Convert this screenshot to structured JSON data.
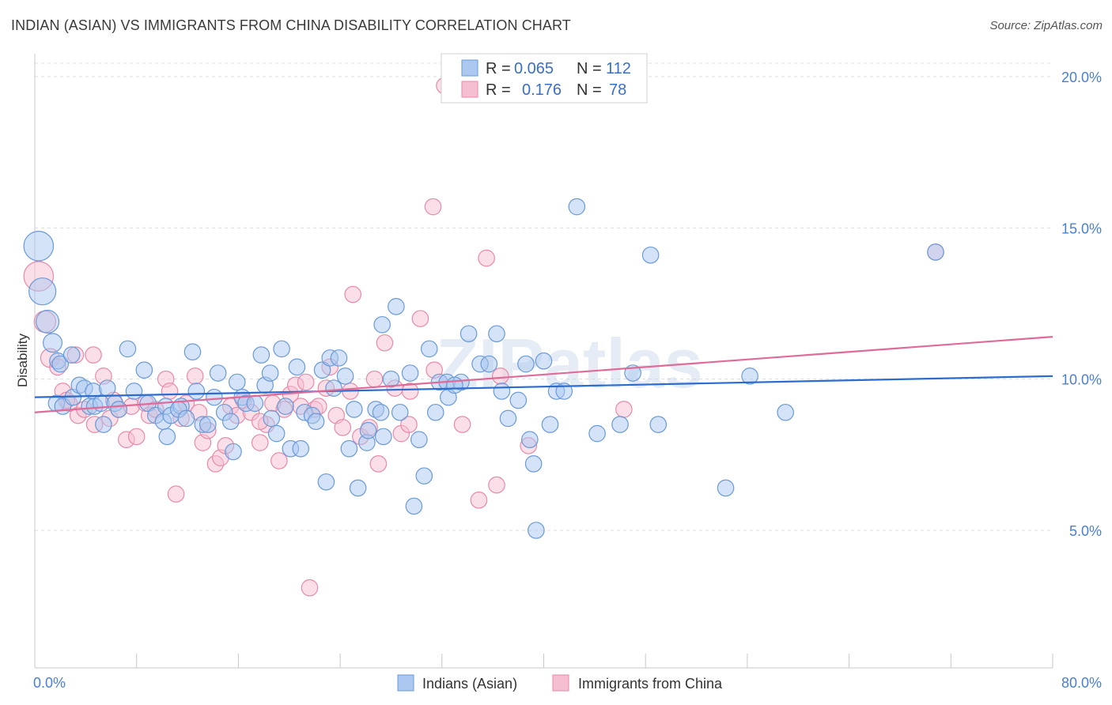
{
  "title": "INDIAN (ASIAN) VS IMMIGRANTS FROM CHINA DISABILITY CORRELATION CHART",
  "source": "Source: ZipAtlas.com",
  "watermark": "ZIPatlas",
  "colors": {
    "blue_fill": "#aac8f0",
    "blue_stroke": "#6a9ad8",
    "blue_line": "#2b6cd0",
    "pink_fill": "#f6bfd1",
    "pink_stroke": "#e88aa8",
    "pink_line": "#e06a98",
    "grid": "#dcdcdc",
    "tick_text": "#4a7fd0"
  },
  "legend_box": {
    "rows": [
      {
        "r_label": "R =",
        "r_value": "0.065",
        "n_label": "N =",
        "n_value": "112",
        "color": "blue"
      },
      {
        "r_label": "R =",
        "r_value": "0.176",
        "n_label": "N =",
        "n_value": "78",
        "color": "pink"
      }
    ]
  },
  "chart_data": {
    "type": "scatter",
    "title": "INDIAN (ASIAN) VS IMMIGRANTS FROM CHINA DISABILITY CORRELATION CHART",
    "xlabel": "",
    "ylabel": "Disability",
    "xlim": [
      0,
      80
    ],
    "ylim": [
      0,
      21
    ],
    "x_tick_labels": [
      "0.0%",
      "80.0%"
    ],
    "y_ticks": [
      5,
      10,
      15,
      20
    ],
    "y_tick_labels": [
      "5.0%",
      "10.0%",
      "15.0%",
      "20.0%"
    ],
    "grid": "horizontal dashed",
    "legend_position": "bottom-center",
    "series": [
      {
        "name": "Indians (Asian)",
        "color": "blue",
        "trend": {
          "x": [
            0,
            80
          ],
          "y": [
            9.4,
            10.1
          ]
        },
        "points": [
          [
            0.3,
            14.4,
            2.2
          ],
          [
            0.6,
            12.9,
            2
          ],
          [
            1,
            11.9,
            1.7
          ],
          [
            1.4,
            11.2,
            1.4
          ],
          [
            1.8,
            10.6,
            1.2
          ],
          [
            2,
            10.5,
            1.2
          ],
          [
            2.9,
            10.8,
            1.2
          ],
          [
            1.7,
            9.2,
            1.2
          ],
          [
            2.2,
            9.1,
            1.2
          ],
          [
            3,
            9.4,
            1.2
          ],
          [
            3.5,
            9.8,
            1.2
          ],
          [
            3.9,
            9.7,
            1.2
          ],
          [
            4.6,
            9.6,
            1.2
          ],
          [
            4.3,
            9.1,
            1.2
          ],
          [
            4.7,
            9.1,
            1.2
          ],
          [
            5.7,
            9.7,
            1.2
          ],
          [
            5.2,
            9.2,
            1.2
          ],
          [
            5.4,
            8.5,
            1.2
          ],
          [
            6.3,
            9.2,
            1.2
          ],
          [
            6.6,
            9.0,
            1.2
          ],
          [
            7.3,
            11,
            1.2
          ],
          [
            7.8,
            9.6,
            1.2
          ],
          [
            8.6,
            10.3,
            1.2
          ],
          [
            8.9,
            9.2,
            1.2
          ],
          [
            9.5,
            8.8,
            1.2
          ],
          [
            10.1,
            8.6,
            1.2
          ],
          [
            10.3,
            9.1,
            1.2
          ],
          [
            10.4,
            8.1,
            1.2
          ],
          [
            10.7,
            8.8,
            1.2
          ],
          [
            11.5,
            9.1,
            1.2
          ],
          [
            11.3,
            9.0,
            1.2
          ],
          [
            11.9,
            8.7,
            1.2
          ],
          [
            12.4,
            10.9,
            1.2
          ],
          [
            12.7,
            9.6,
            1.2
          ],
          [
            13.2,
            8.5,
            1.2
          ],
          [
            13.6,
            8.5,
            1.2
          ],
          [
            14.1,
            9.4,
            1.2
          ],
          [
            14.4,
            10.2,
            1.2
          ],
          [
            14.9,
            8.9,
            1.2
          ],
          [
            15.4,
            8.6,
            1.2
          ],
          [
            15.6,
            7.6,
            1.2
          ],
          [
            15.9,
            9.9,
            1.2
          ],
          [
            16.3,
            9.4,
            1.2
          ],
          [
            16.6,
            9.2,
            1.2
          ],
          [
            17.3,
            9.2,
            1.2
          ],
          [
            17.8,
            10.8,
            1.2
          ],
          [
            18.1,
            9.8,
            1.2
          ],
          [
            18.6,
            8.7,
            1.2
          ],
          [
            19,
            8.2,
            1.2
          ],
          [
            19.4,
            11,
            1.2
          ],
          [
            19.7,
            9.1,
            1.2
          ],
          [
            20.1,
            7.7,
            1.2
          ],
          [
            20.6,
            10.4,
            1.2
          ],
          [
            20.9,
            7.7,
            1.2
          ],
          [
            21.2,
            8.9,
            1.2
          ],
          [
            21.8,
            8.8,
            1.2
          ],
          [
            22.1,
            8.6,
            1.2
          ],
          [
            22.6,
            10.3,
            1.2
          ],
          [
            22.9,
            6.6,
            1.2
          ],
          [
            23.2,
            10.7,
            1.2
          ],
          [
            23.5,
            9.7,
            1.2
          ],
          [
            23.9,
            10.7,
            1.2
          ],
          [
            24.4,
            10.1,
            1.2
          ],
          [
            24.7,
            7.7,
            1.2
          ],
          [
            25.1,
            9.0,
            1.2
          ],
          [
            25.4,
            6.4,
            1.2
          ],
          [
            26.1,
            7.9,
            1.2
          ],
          [
            26.2,
            8.3,
            1.2
          ],
          [
            26.8,
            9.0,
            1.2
          ],
          [
            27.3,
            11.8,
            1.2
          ],
          [
            27.4,
            8.1,
            1.2
          ],
          [
            28,
            10,
            1.2
          ],
          [
            28.4,
            12.4,
            1.2
          ],
          [
            28.7,
            8.9,
            1.2
          ],
          [
            29.5,
            10.2,
            1.2
          ],
          [
            29.8,
            5.8,
            1.2
          ],
          [
            30.2,
            8,
            1.2
          ],
          [
            30.6,
            6.8,
            1.2
          ],
          [
            31,
            11,
            1.2
          ],
          [
            31.5,
            8.9,
            1.2
          ],
          [
            31.8,
            9.9,
            1.2
          ],
          [
            32.4,
            9.9,
            1.2
          ],
          [
            32.5,
            9.4,
            1.2
          ],
          [
            33.5,
            9.9,
            1.2
          ],
          [
            34.1,
            11.5,
            1.2
          ],
          [
            35,
            10.5,
            1.2
          ],
          [
            35.7,
            10.5,
            1.2
          ],
          [
            36.3,
            11.5,
            1.2
          ],
          [
            36.7,
            9.6,
            1.2
          ],
          [
            37.2,
            8.7,
            1.2
          ],
          [
            38,
            9.3,
            1.2
          ],
          [
            38.6,
            10.5,
            1.2
          ],
          [
            38.9,
            8.0,
            1.2
          ],
          [
            39.2,
            7.2,
            1.2
          ],
          [
            39.4,
            5.0,
            1.2
          ],
          [
            40,
            10.6,
            1.2
          ],
          [
            40.5,
            8.5,
            1.2
          ],
          [
            41,
            9.6,
            1.2
          ],
          [
            41.6,
            9.6,
            1.2
          ],
          [
            42.6,
            15.7,
            1.2
          ],
          [
            44.2,
            8.2,
            1.2
          ],
          [
            46,
            8.5,
            1.2
          ],
          [
            47,
            10.2,
            1.2
          ],
          [
            48.4,
            14.1,
            1.2
          ],
          [
            49,
            8.5,
            1.2
          ],
          [
            54.3,
            6.4,
            1.2
          ],
          [
            56.2,
            10.1,
            1.2
          ],
          [
            59,
            8.9,
            1.2
          ],
          [
            70.8,
            14.2,
            1.2
          ],
          [
            27.2,
            8.9,
            1.2
          ],
          [
            33,
            9.8,
            1.2
          ],
          [
            18.5,
            10.2,
            1.2
          ]
        ]
      },
      {
        "name": "Immigrants from China",
        "color": "pink",
        "trend": {
          "x": [
            0,
            80
          ],
          "y": [
            8.9,
            11.4
          ]
        },
        "points": [
          [
            0.3,
            13.4,
            2.2
          ],
          [
            0.8,
            11.9,
            1.6
          ],
          [
            1.2,
            10.7,
            1.4
          ],
          [
            1.8,
            10.4,
            1.2
          ],
          [
            2.2,
            9.6,
            1.2
          ],
          [
            2.7,
            9.2,
            1.2
          ],
          [
            3.4,
            8.8,
            1.2
          ],
          [
            3.9,
            9.0,
            1.2
          ],
          [
            4.6,
            10.8,
            1.2
          ],
          [
            4.7,
            8.5,
            1.2
          ],
          [
            5.4,
            10.1,
            1.2
          ],
          [
            5.9,
            8.7,
            1.2
          ],
          [
            6.2,
            9.3,
            1.2
          ],
          [
            6.6,
            9.0,
            1.2
          ],
          [
            7.2,
            8.0,
            1.2
          ],
          [
            7.6,
            9.1,
            1.2
          ],
          [
            8,
            8.1,
            1.2
          ],
          [
            8.7,
            9.2,
            1.2
          ],
          [
            9.0,
            8.8,
            1.2
          ],
          [
            9.5,
            9.0,
            1.2
          ],
          [
            10.3,
            10.0,
            1.2
          ],
          [
            10.6,
            9.6,
            1.2
          ],
          [
            11.1,
            6.2,
            1.2
          ],
          [
            11.5,
            8.7,
            1.2
          ],
          [
            11.9,
            9.2,
            1.2
          ],
          [
            12.6,
            10.1,
            1.2
          ],
          [
            12.9,
            8.9,
            1.2
          ],
          [
            13.2,
            7.9,
            1.2
          ],
          [
            13.6,
            8.3,
            1.2
          ],
          [
            14.2,
            7.2,
            1.2
          ],
          [
            14.6,
            7.4,
            1.2
          ],
          [
            15,
            7.8,
            1.2
          ],
          [
            15.4,
            9.1,
            1.2
          ],
          [
            15.9,
            8.8,
            1.2
          ],
          [
            16.4,
            9.3,
            1.2
          ],
          [
            17.0,
            8.9,
            1.2
          ],
          [
            17.7,
            7.9,
            1.2
          ],
          [
            18.2,
            8.5,
            1.2
          ],
          [
            18.7,
            9.2,
            1.2
          ],
          [
            19.2,
            7.3,
            1.2
          ],
          [
            19.6,
            9.0,
            1.2
          ],
          [
            20.1,
            9.5,
            1.2
          ],
          [
            20.5,
            9.8,
            1.2
          ],
          [
            20.9,
            9.1,
            1.2
          ],
          [
            21.6,
            3.1,
            1.2
          ],
          [
            22,
            9.0,
            1.2
          ],
          [
            22.3,
            9.1,
            1.2
          ],
          [
            22.9,
            9.7,
            1.2
          ],
          [
            23.2,
            10.4,
            1.2
          ],
          [
            23.7,
            8.8,
            1.2
          ],
          [
            24.2,
            8.4,
            1.2
          ],
          [
            24.8,
            9.6,
            1.2
          ],
          [
            25.0,
            12.8,
            1.2
          ],
          [
            25.6,
            8.1,
            1.2
          ],
          [
            26.3,
            8.4,
            1.2
          ],
          [
            26.7,
            10.0,
            1.2
          ],
          [
            27.0,
            7.2,
            1.2
          ],
          [
            27.5,
            11.2,
            1.2
          ],
          [
            28.3,
            9.7,
            1.2
          ],
          [
            28.8,
            8.2,
            1.2
          ],
          [
            29.4,
            8.5,
            1.2
          ],
          [
            29.5,
            9.6,
            1.2
          ],
          [
            30.3,
            12.0,
            1.2
          ],
          [
            31.3,
            15.7,
            1.2
          ],
          [
            31.4,
            10.3,
            1.2
          ],
          [
            32.2,
            19.7,
            1.2
          ],
          [
            33.6,
            8.5,
            1.2
          ],
          [
            34.9,
            6.0,
            1.2
          ],
          [
            35.5,
            14.0,
            1.2
          ],
          [
            36.3,
            6.5,
            1.2
          ],
          [
            36.6,
            10.1,
            1.2
          ],
          [
            38.8,
            7.8,
            1.2
          ],
          [
            46.3,
            9.0,
            1.2
          ],
          [
            70.8,
            14.2,
            1.2
          ],
          [
            3.2,
            10.8,
            1.2
          ],
          [
            2.5,
            9.3,
            1.2
          ],
          [
            17.7,
            8.6,
            1.2
          ],
          [
            21.3,
            9.9,
            1.2
          ]
        ]
      }
    ]
  }
}
